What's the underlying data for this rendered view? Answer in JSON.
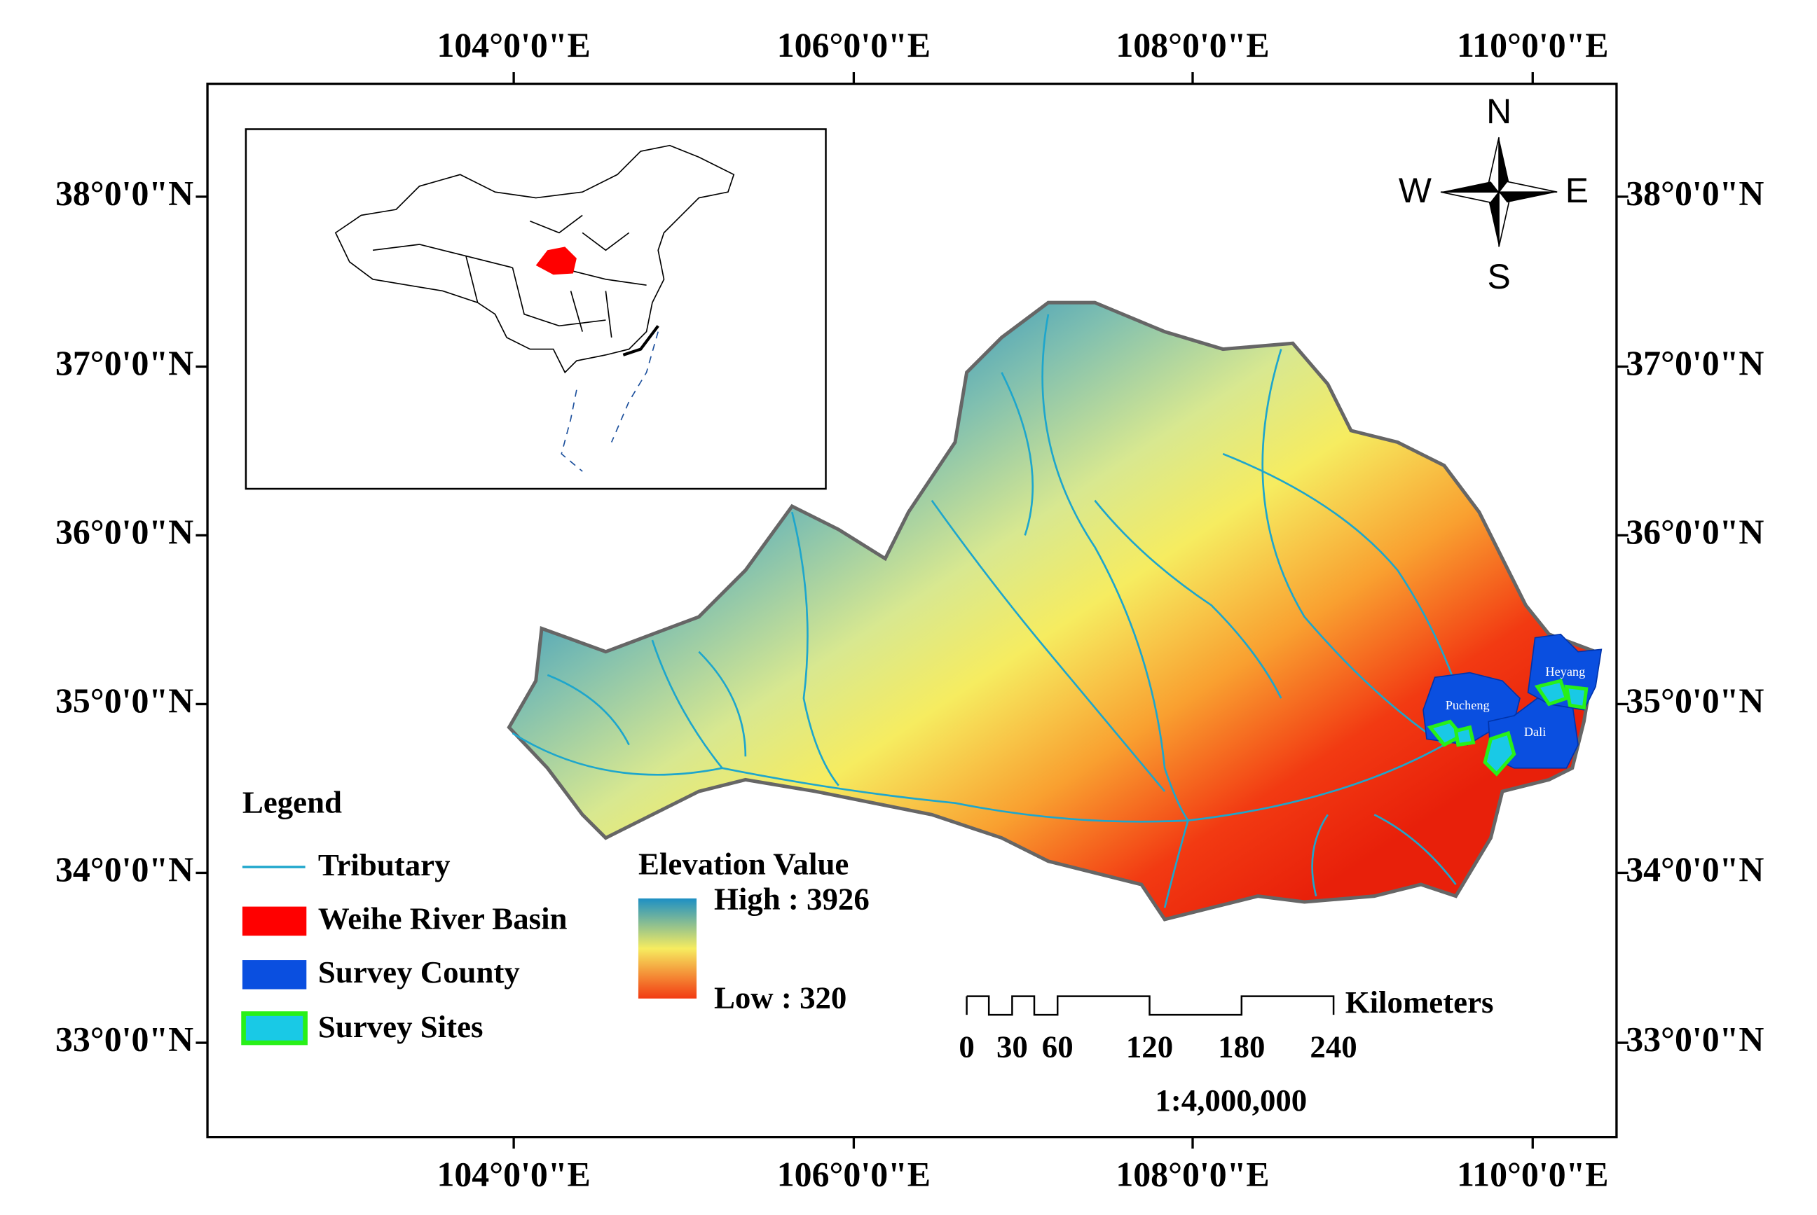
{
  "longitude_labels": {
    "top": [
      "104°0'0\"E",
      "106°0'0\"E",
      "108°0'0\"E",
      "110°0'0\"E"
    ],
    "bottom": [
      "104°0'0\"E",
      "106°0'0\"E",
      "108°0'0\"E",
      "110°0'0\"E"
    ]
  },
  "latitude_labels": {
    "left": [
      "38°0'0\"N",
      "37°0'0\"N",
      "36°0'0\"N",
      "35°0'0\"N",
      "34°0'0\"N",
      "33°0'0\"N"
    ],
    "right": [
      "38°0'0\"N",
      "37°0'0\"N",
      "36°0'0\"N",
      "35°0'0\"N",
      "34°0'0\"N",
      "33°0'0\"N"
    ]
  },
  "compass": {
    "north": "N",
    "south": "S",
    "west": "W",
    "east": "E"
  },
  "legend": {
    "title": "Legend",
    "items": [
      "Tributary",
      "Weihe River Basin",
      "Survey County",
      "Survey Sites"
    ]
  },
  "elevation": {
    "title": "Elevation Value",
    "high": "High : 3926",
    "low": "Low : 320"
  },
  "scale_bar": {
    "labels": [
      "0",
      "30",
      "60",
      "120",
      "180",
      "240"
    ],
    "unit": "Kilometers",
    "ratio": "1:4,000,000"
  },
  "county_labels": [
    "Pucheng",
    "Dali",
    "Heyang"
  ]
}
